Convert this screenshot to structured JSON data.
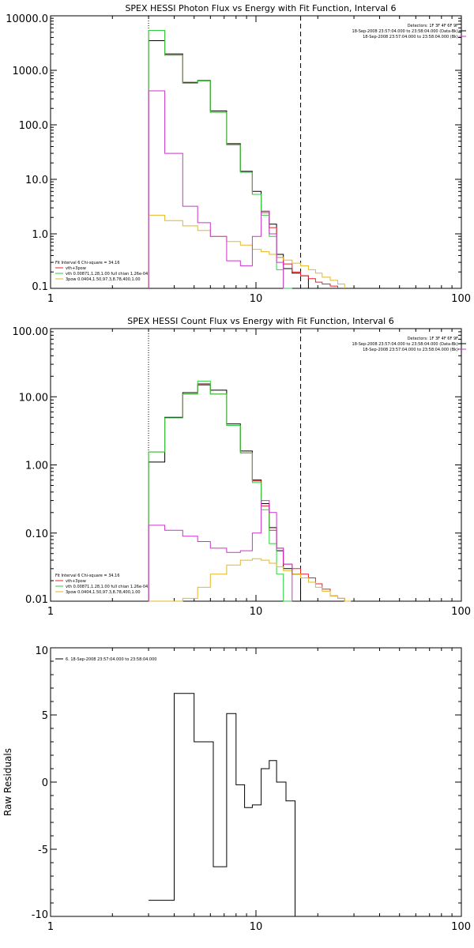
{
  "chart_data": [
    {
      "type": "line",
      "title": "SPEX HESSI Photon Flux vs Energy with Fit Function, Interval 6",
      "xscale": "log",
      "yscale": "log",
      "xlim": [
        1,
        100
      ],
      "ylim": [
        0.1,
        10000
      ],
      "xticks": [
        1,
        10,
        100
      ],
      "xtick_labels": [
        "1",
        "10",
        "100"
      ],
      "yticks": [
        0.1,
        1,
        10,
        100,
        1000,
        10000
      ],
      "ytick_labels": [
        "0.1",
        "1.0",
        "10.0",
        "100.0",
        "1000.0",
        "10000.0"
      ],
      "vlines": [
        {
          "x": 3.0,
          "style": "dotted"
        },
        {
          "x": 16.5,
          "style": "dashed"
        }
      ],
      "edges": [
        3.0,
        3.6,
        4.4,
        5.2,
        6.0,
        7.2,
        8.4,
        9.6,
        10.6,
        11.6,
        12.6,
        13.6,
        15.0,
        16.5,
        18.0,
        19.5,
        21.0,
        23.0,
        25.0,
        27.0
      ],
      "series": [
        {
          "name": "",
          "color": "#000000",
          "values": [
            3500,
            2000,
            600,
            650,
            180,
            45,
            14,
            6,
            2.6,
            1.5,
            0.42,
            0.23,
            0.19,
            0.17
          ]
        },
        {
          "name": "vth+3pow",
          "color": "#e8202a",
          "values": [
            5400,
            1900,
            580,
            640,
            170,
            43,
            13.5,
            5.3,
            2.45,
            1.3,
            0.37,
            0.28,
            0.2,
            0.17,
            0.15,
            0.13,
            0.12,
            0.11
          ]
        },
        {
          "name": "vth 0.00871,1.28,1.00 full chian 1.26e-04",
          "color": "#2ecf3e",
          "values": [
            5400,
            1900,
            580,
            640,
            170,
            43,
            13.5,
            5.3,
            2.2,
            0.9,
            0.22,
            0.1
          ]
        },
        {
          "name": "3pow 0.0404,1.50,97.3,8.78,400,1.00",
          "color": "#e2b823",
          "values": [
            2.2,
            1.75,
            1.4,
            1.15,
            0.9,
            0.72,
            0.62,
            0.52,
            0.47,
            0.42,
            0.37,
            0.33,
            0.29,
            0.26,
            0.22,
            0.19,
            0.16,
            0.14,
            0.12
          ]
        },
        {
          "name": "",
          "color": "#cc33cc",
          "values": [
            420,
            30,
            3.2,
            1.6,
            0.9,
            0.32,
            0.26,
            0.9,
            2.6,
            1.0,
            0.3
          ]
        }
      ],
      "legend_right": {
        "lines": [
          {
            "text": "Detectors: 1F 3F 4F 6F 9F",
            "color": ""
          },
          {
            "text": "18-Sep-2008 23:57:04.000 to 23:58:04.000 (Data-Bk)",
            "color": "#000000"
          },
          {
            "text": "18-Sep-2008 23:57:04.000 to 23:58:04.000 (Bk)",
            "color": "#cc33cc"
          }
        ]
      },
      "legend_left": {
        "header": "Fit Interval  6    Chi-square = 34.16",
        "items": [
          {
            "text": "vth+3pow",
            "color": "#e8202a"
          },
          {
            "text": "vth 0.00871,1.28,1.00  full chian 1.26e-04",
            "color": "#2ecf3e"
          },
          {
            "text": "3pow 0.0404,1.50,97.3,8.78,400,1.00",
            "color": "#e2b823"
          }
        ]
      }
    },
    {
      "type": "line",
      "title": "SPEX HESSI Count Flux vs Energy with Fit Function, Interval 6",
      "xscale": "log",
      "yscale": "log",
      "xlim": [
        1,
        100
      ],
      "ylim": [
        0.01,
        100
      ],
      "xticks": [
        1,
        10,
        100
      ],
      "xtick_labels": [
        "1",
        "10",
        "100"
      ],
      "yticks": [
        0.01,
        0.1,
        1,
        10,
        100
      ],
      "ytick_labels": [
        "0.01",
        "0.10",
        "1.00",
        "10.00",
        "100.00"
      ],
      "vlines": [
        {
          "x": 3.0,
          "style": "dotted"
        },
        {
          "x": 16.5,
          "style": "dashed"
        }
      ],
      "edges": [
        3.0,
        3.6,
        4.4,
        5.2,
        6.0,
        7.2,
        8.4,
        9.6,
        10.6,
        11.6,
        12.6,
        13.6,
        15.0,
        16.5,
        18.0,
        19.5,
        21.0,
        23.0,
        25.0,
        27.0,
        29.0
      ],
      "series": [
        {
          "name": "",
          "color": "#000000",
          "values": [
            1.1,
            5.0,
            11.5,
            15.0,
            12.5,
            4.0,
            1.6,
            0.6,
            0.27,
            0.12,
            0.055,
            0.03,
            0.025
          ]
        },
        {
          "name": "vth+3pow",
          "color": "#e8202a",
          "values": [
            1.55,
            4.9,
            11.0,
            15.5,
            11.0,
            3.8,
            1.5,
            0.58,
            0.25,
            0.11,
            0.06,
            0.035,
            0.03,
            0.025,
            0.022,
            0.018,
            0.015,
            0.012,
            0.011
          ]
        },
        {
          "name": "vth 0.00871,1.28,1.00 full chian 1.26e-04",
          "color": "#2ecf3e",
          "values": [
            1.55,
            4.9,
            11.0,
            17.0,
            11.0,
            3.8,
            1.5,
            0.55,
            0.22,
            0.07,
            0.025,
            0.01
          ]
        },
        {
          "name": "3pow 0.0404,1.50,97.3,8.78,400,1.00",
          "color": "#e2b823",
          "values": [
            0.008,
            0.009,
            0.011,
            0.016,
            0.025,
            0.034,
            0.04,
            0.042,
            0.04,
            0.036,
            0.032,
            0.028,
            0.025,
            0.022,
            0.019,
            0.016,
            0.014,
            0.012,
            0.011,
            0.01
          ]
        },
        {
          "name": "",
          "color": "#cc33cc",
          "values": [
            0.13,
            0.11,
            0.09,
            0.075,
            0.06,
            0.052,
            0.055,
            0.1,
            0.3,
            0.2,
            0.06,
            0.035
          ]
        }
      ],
      "legend_right": {
        "lines": [
          {
            "text": "Detectors: 1F 3F 4F 6F 9F",
            "color": ""
          },
          {
            "text": "18-Sep-2008 23:57:04.000 to 23:58:04.000 (Data-Bk)",
            "color": "#000000"
          },
          {
            "text": "18-Sep-2008 23:57:04.000 to 23:58:04.000 (Bk)",
            "color": "#cc33cc"
          }
        ]
      },
      "legend_left": {
        "header": "Fit Interval  6    Chi-square = 34.16",
        "items": [
          {
            "text": "vth+3pow",
            "color": "#e8202a"
          },
          {
            "text": "vth 0.00871,1.28,1.00  full chian 1.26e-04",
            "color": "#2ecf3e"
          },
          {
            "text": "3pow 0.0404,1.50,97.3,8.78,400,1.00",
            "color": "#e2b823"
          }
        ]
      }
    },
    {
      "type": "line",
      "title": "",
      "ylabel": "Raw Residuals",
      "xscale": "log",
      "yscale": "linear",
      "xlim": [
        1,
        100
      ],
      "ylim": [
        -10,
        10
      ],
      "xticks": [
        1,
        10,
        100
      ],
      "xtick_labels": [
        "1",
        "10",
        "100"
      ],
      "yticks": [
        -10,
        -5,
        0,
        5,
        10
      ],
      "ytick_labels": [
        "-10",
        "-5",
        "0",
        "5",
        "10"
      ],
      "vlines": [],
      "edges": [
        3.0,
        4.0,
        5.0,
        6.2,
        7.2,
        8.0,
        8.8,
        9.6,
        10.6,
        11.6,
        12.6,
        14.0,
        15.5,
        16.5
      ],
      "series": [
        {
          "name": "6. 18-Sep-2008 23:57:04.000 to 23:58:04.000",
          "color": "#000000",
          "values": [
            -8.8,
            6.6,
            3.0,
            -6.3,
            5.1,
            -0.2,
            -1.9,
            -1.7,
            1.0,
            1.6,
            0.0,
            -1.4,
            -10.0
          ]
        }
      ],
      "legend_right": {
        "lines": []
      },
      "legend_left": {
        "header": "",
        "items": [
          {
            "text": "6. 18-Sep-2008 23:57:04.000 to 23:58:04.000",
            "color": "#000000"
          }
        ]
      }
    }
  ]
}
